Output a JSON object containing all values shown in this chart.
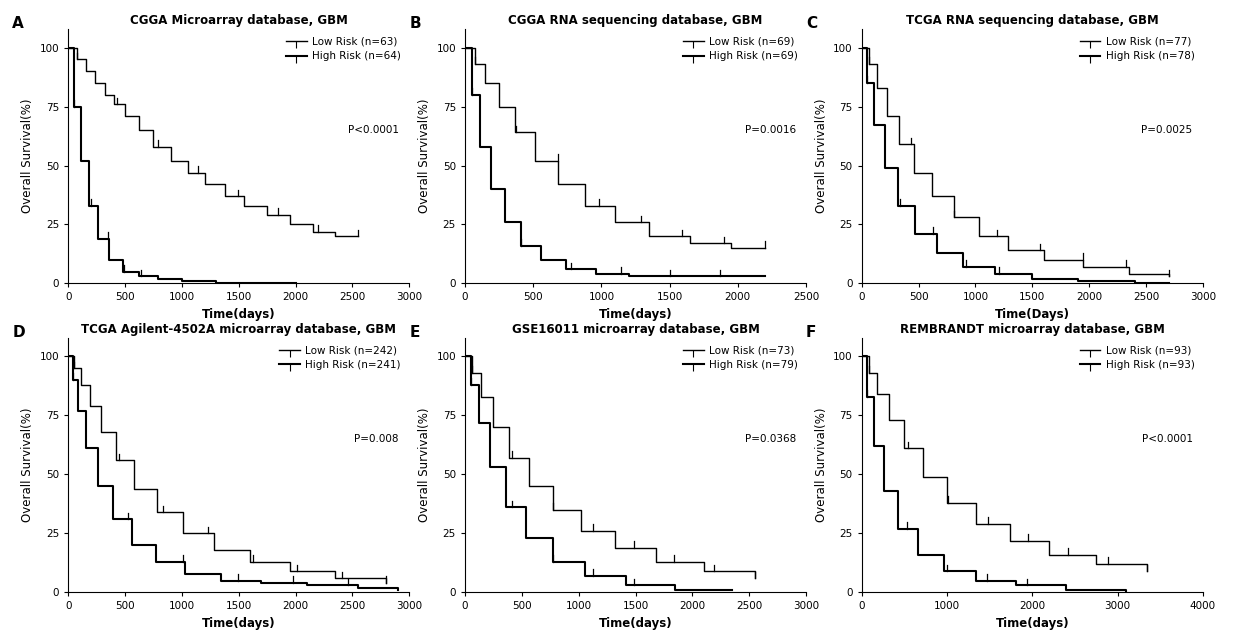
{
  "panels": [
    {
      "label": "A",
      "title": "CGGA Microarray database, GBM",
      "low_n": 63,
      "high_n": 64,
      "pvalue": "P<0.0001",
      "xlim": [
        0,
        3000
      ],
      "xticks": [
        0,
        500,
        1000,
        1500,
        2000,
        2500,
        3000
      ],
      "xlabel": "Time(days)",
      "ylabel": "Overall Survival(%)",
      "low_x": [
        0,
        80,
        160,
        240,
        320,
        400,
        500,
        620,
        750,
        900,
        1050,
        1200,
        1380,
        1550,
        1750,
        1950,
        2150,
        2350,
        2550
      ],
      "low_y": [
        100,
        95,
        90,
        85,
        80,
        76,
        71,
        65,
        58,
        52,
        47,
        42,
        37,
        33,
        29,
        25,
        22,
        20,
        20
      ],
      "high_x": [
        0,
        50,
        110,
        180,
        260,
        360,
        480,
        620,
        790,
        1000,
        1300,
        1700,
        2000
      ],
      "high_y": [
        100,
        75,
        52,
        33,
        19,
        10,
        5,
        3,
        2,
        1,
        0,
        0,
        0
      ]
    },
    {
      "label": "B",
      "title": "CGGA RNA sequencing database, GBM",
      "low_n": 69,
      "high_n": 69,
      "pvalue": "P=0.0016",
      "xlim": [
        0,
        2500
      ],
      "xticks": [
        0,
        500,
        1000,
        1500,
        2000,
        2500
      ],
      "xlabel": "Time(days)",
      "ylabel": "Overall Survival(%)",
      "low_x": [
        0,
        70,
        150,
        250,
        370,
        510,
        680,
        880,
        1100,
        1350,
        1650,
        1950,
        2200
      ],
      "low_y": [
        100,
        93,
        85,
        75,
        64,
        52,
        42,
        33,
        26,
        20,
        17,
        15,
        15
      ],
      "high_x": [
        0,
        50,
        110,
        190,
        290,
        410,
        560,
        740,
        960,
        1200,
        1500,
        1900,
        2200
      ],
      "high_y": [
        100,
        80,
        58,
        40,
        26,
        16,
        10,
        6,
        4,
        3,
        3,
        3,
        3
      ]
    },
    {
      "label": "C",
      "title": "TCGA RNA sequencing database, GBM",
      "low_n": 77,
      "high_n": 78,
      "pvalue": "P=0.0025",
      "xlim": [
        0,
        3000
      ],
      "xticks": [
        0,
        500,
        1000,
        1500,
        2000,
        2500,
        3000
      ],
      "xlabel": "Time(Days)",
      "ylabel": "Overall Survival(%)",
      "low_x": [
        0,
        60,
        130,
        220,
        330,
        460,
        620,
        810,
        1030,
        1290,
        1600,
        1950,
        2350,
        2700
      ],
      "low_y": [
        100,
        93,
        83,
        71,
        59,
        47,
        37,
        28,
        20,
        14,
        10,
        7,
        4,
        3
      ],
      "high_x": [
        0,
        50,
        110,
        200,
        320,
        470,
        660,
        890,
        1170,
        1500,
        1900,
        2400,
        2700
      ],
      "high_y": [
        100,
        85,
        67,
        49,
        33,
        21,
        13,
        7,
        4,
        2,
        1,
        0,
        0
      ]
    },
    {
      "label": "D",
      "title": "TCGA Agilent-4502A microarray database, GBM",
      "low_n": 242,
      "high_n": 241,
      "pvalue": "P=0.008",
      "xlim": [
        0,
        3000
      ],
      "xticks": [
        0,
        500,
        1000,
        1500,
        2000,
        2500,
        3000
      ],
      "xlabel": "Time(days)",
      "ylabel": "Overall Survival(%)",
      "low_x": [
        0,
        50,
        110,
        190,
        290,
        420,
        580,
        780,
        1010,
        1280,
        1600,
        1950,
        2350,
        2800
      ],
      "low_y": [
        100,
        95,
        88,
        79,
        68,
        56,
        44,
        34,
        25,
        18,
        13,
        9,
        6,
        4
      ],
      "high_x": [
        0,
        40,
        90,
        160,
        260,
        390,
        560,
        770,
        1030,
        1340,
        1700,
        2100,
        2550,
        2900
      ],
      "high_y": [
        100,
        90,
        77,
        61,
        45,
        31,
        20,
        13,
        8,
        5,
        4,
        3,
        2,
        1
      ]
    },
    {
      "label": "E",
      "title": "GSE16011 microarray database, GBM",
      "low_n": 73,
      "high_n": 79,
      "pvalue": "P=0.0368",
      "xlim": [
        0,
        3000
      ],
      "xticks": [
        0,
        500,
        1000,
        1500,
        2000,
        2500,
        3000
      ],
      "xlabel": "Time(days)",
      "ylabel": "Overall Survival(%)",
      "low_x": [
        0,
        60,
        140,
        250,
        390,
        560,
        770,
        1020,
        1320,
        1680,
        2100,
        2550
      ],
      "low_y": [
        100,
        93,
        83,
        70,
        57,
        45,
        35,
        26,
        19,
        13,
        9,
        6
      ],
      "high_x": [
        0,
        50,
        120,
        220,
        360,
        540,
        770,
        1060,
        1420,
        1850,
        2350
      ],
      "high_y": [
        100,
        88,
        72,
        53,
        36,
        23,
        13,
        7,
        3,
        1,
        1
      ]
    },
    {
      "label": "F",
      "title": "REMBRANDT microarray database, GBM",
      "low_n": 93,
      "high_n": 93,
      "pvalue": "P<0.0001",
      "xlim": [
        0,
        4000
      ],
      "xticks": [
        0,
        1000,
        2000,
        3000,
        4000
      ],
      "xlabel": "Time(days)",
      "ylabel": "Overall Survival(%)",
      "low_x": [
        0,
        80,
        180,
        320,
        500,
        720,
        1000,
        1340,
        1740,
        2200,
        2750,
        3350
      ],
      "low_y": [
        100,
        93,
        84,
        73,
        61,
        49,
        38,
        29,
        22,
        16,
        12,
        9
      ],
      "high_x": [
        0,
        60,
        140,
        260,
        430,
        660,
        960,
        1340,
        1810,
        2400,
        3100
      ],
      "high_y": [
        100,
        83,
        62,
        43,
        27,
        16,
        9,
        5,
        3,
        1,
        0
      ]
    }
  ],
  "bg_color": "#ffffff",
  "label_fontsize": 8.5,
  "title_fontsize": 8.5,
  "legend_fontsize": 7.5,
  "panel_label_fontsize": 11,
  "axis_tick_labelsize": 7.5
}
